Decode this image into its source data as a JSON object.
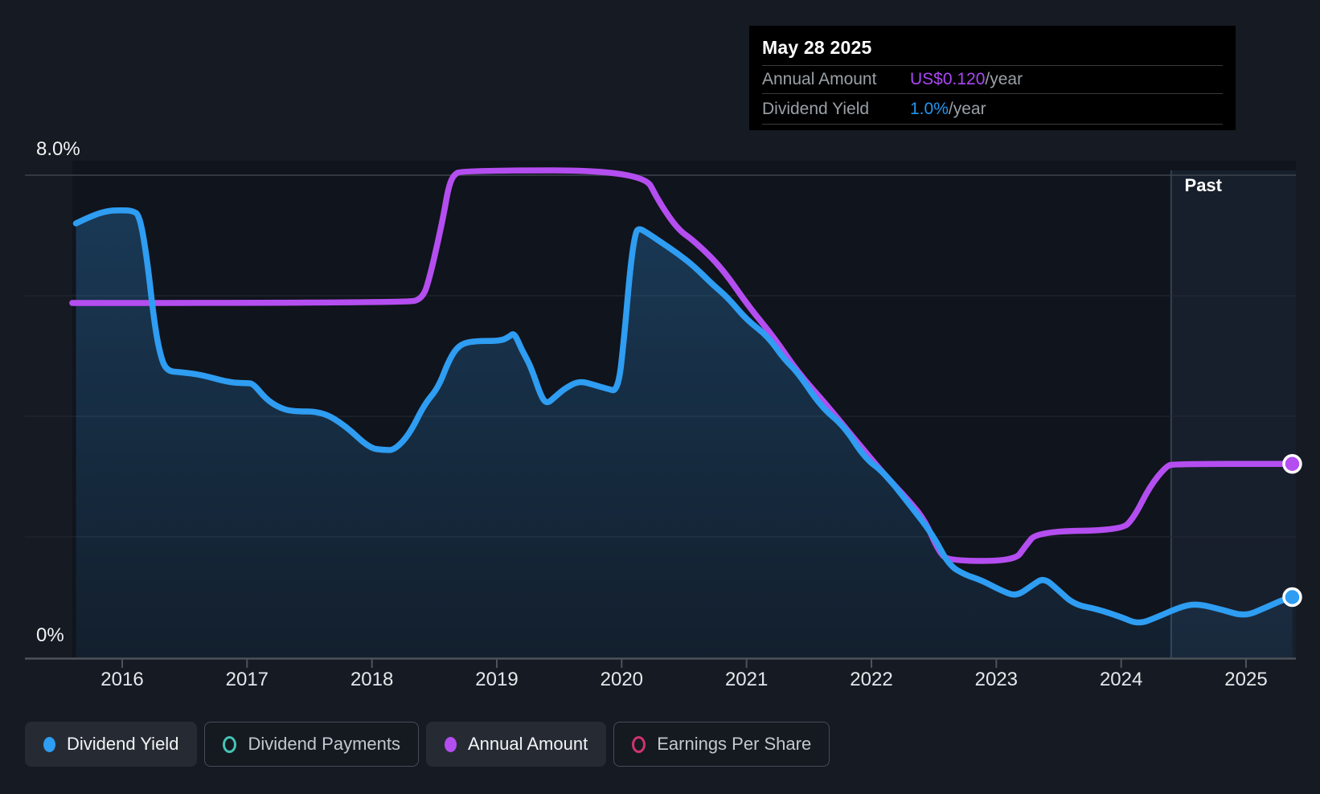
{
  "tooltip": {
    "date": "May 28 2025",
    "rows": [
      {
        "label": "Annual Amount",
        "value": "US$0.120",
        "suffix": "/year"
      },
      {
        "label": "Dividend Yield",
        "value": "1.0%",
        "suffix": "/year"
      }
    ]
  },
  "axis": {
    "y_top_label": "8.0%",
    "y_bottom_label": "0%",
    "years": [
      "2016",
      "2017",
      "2018",
      "2019",
      "2020",
      "2021",
      "2022",
      "2023",
      "2024",
      "2025"
    ],
    "past_label": "Past"
  },
  "legend": [
    {
      "label": "Dividend Yield",
      "color": "#2e9df2",
      "style": "filled",
      "active": true
    },
    {
      "label": "Dividend Payments",
      "color": "#45c4b5",
      "style": "ring",
      "active": false
    },
    {
      "label": "Annual Amount",
      "color": "#b44ef0",
      "style": "filled",
      "active": true
    },
    {
      "label": "Earnings Per Share",
      "color": "#d1336f",
      "style": "ring",
      "active": false
    }
  ],
  "colors": {
    "page_bg": "#161a22",
    "plot_bg": "#10141c",
    "grid_top": "#3c434c",
    "grid_mid": "#242a33",
    "axis_line": "#4d535b",
    "past_fill": "rgba(90,140,190,0.10)",
    "past_divider": "rgba(130,170,210,0.28)",
    "yield_line": "#2e9df2",
    "amount_line": "#b44ef0",
    "tooltip_purple": "#ab47f5",
    "tooltip_blue": "#2196f3"
  },
  "chart_data": {
    "type": "line",
    "title": "Dividend yield and annual amount history",
    "x_range": [
      2015.6,
      2025.45
    ],
    "ylim": [
      0,
      8
    ],
    "y_unit": "%",
    "grid_values": [
      0,
      2,
      4,
      6,
      8
    ],
    "grid": true,
    "legend_position": "bottom",
    "past_divider_x": 2024.4,
    "series": [
      {
        "name": "Dividend Yield",
        "color": "#2e9df2",
        "fill": true,
        "end_value_label": "1.0%/year",
        "points": [
          [
            2015.63,
            7.2
          ],
          [
            2015.75,
            7.32
          ],
          [
            2015.88,
            7.41
          ],
          [
            2016.0,
            7.42
          ],
          [
            2016.08,
            7.41
          ],
          [
            2016.14,
            7.34
          ],
          [
            2016.2,
            6.6
          ],
          [
            2016.26,
            5.5
          ],
          [
            2016.31,
            4.97
          ],
          [
            2016.36,
            4.75
          ],
          [
            2016.47,
            4.73
          ],
          [
            2016.63,
            4.69
          ],
          [
            2016.86,
            4.56
          ],
          [
            2017.0,
            4.55
          ],
          [
            2017.05,
            4.54
          ],
          [
            2017.15,
            4.29
          ],
          [
            2017.25,
            4.15
          ],
          [
            2017.36,
            4.08
          ],
          [
            2017.6,
            4.08
          ],
          [
            2017.79,
            3.84
          ],
          [
            2017.98,
            3.47
          ],
          [
            2018.1,
            3.44
          ],
          [
            2018.18,
            3.44
          ],
          [
            2018.3,
            3.7
          ],
          [
            2018.42,
            4.2
          ],
          [
            2018.53,
            4.47
          ],
          [
            2018.62,
            4.95
          ],
          [
            2018.7,
            5.19
          ],
          [
            2018.82,
            5.25
          ],
          [
            2019.03,
            5.25
          ],
          [
            2019.1,
            5.32
          ],
          [
            2019.14,
            5.39
          ],
          [
            2019.2,
            5.1
          ],
          [
            2019.27,
            4.84
          ],
          [
            2019.35,
            4.35
          ],
          [
            2019.4,
            4.2
          ],
          [
            2019.47,
            4.33
          ],
          [
            2019.55,
            4.47
          ],
          [
            2019.66,
            4.59
          ],
          [
            2019.78,
            4.52
          ],
          [
            2019.88,
            4.46
          ],
          [
            2019.97,
            4.41
          ],
          [
            2020.02,
            5.3
          ],
          [
            2020.07,
            6.5
          ],
          [
            2020.11,
            7.05
          ],
          [
            2020.14,
            7.12
          ],
          [
            2020.2,
            7.05
          ],
          [
            2020.3,
            6.91
          ],
          [
            2020.45,
            6.7
          ],
          [
            2020.58,
            6.49
          ],
          [
            2020.72,
            6.2
          ],
          [
            2020.85,
            5.97
          ],
          [
            2021.0,
            5.6
          ],
          [
            2021.17,
            5.33
          ],
          [
            2021.3,
            4.95
          ],
          [
            2021.41,
            4.73
          ],
          [
            2021.6,
            4.15
          ],
          [
            2021.78,
            3.84
          ],
          [
            2021.95,
            3.3
          ],
          [
            2022.1,
            3.07
          ],
          [
            2022.3,
            2.55
          ],
          [
            2022.49,
            2.04
          ],
          [
            2022.62,
            1.53
          ],
          [
            2022.75,
            1.37
          ],
          [
            2022.88,
            1.28
          ],
          [
            2023.04,
            1.11
          ],
          [
            2023.16,
            1.01
          ],
          [
            2023.29,
            1.2
          ],
          [
            2023.38,
            1.32
          ],
          [
            2023.49,
            1.13
          ],
          [
            2023.62,
            0.88
          ],
          [
            2023.81,
            0.8
          ],
          [
            2024.0,
            0.67
          ],
          [
            2024.14,
            0.55
          ],
          [
            2024.29,
            0.67
          ],
          [
            2024.49,
            0.85
          ],
          [
            2024.61,
            0.89
          ],
          [
            2024.81,
            0.79
          ],
          [
            2024.99,
            0.68
          ],
          [
            2025.16,
            0.83
          ],
          [
            2025.29,
            0.95
          ],
          [
            2025.37,
            1.0
          ]
        ]
      },
      {
        "name": "Annual Amount",
        "color": "#b44ef0",
        "fill": false,
        "end_value_label": "US$0.120/year",
        "unit_note": "plotted on a separate US$ scale; y values are %-axis equivalent positions",
        "points": [
          [
            2015.6,
            5.88
          ],
          [
            2018.27,
            5.88
          ],
          [
            2018.41,
            5.95
          ],
          [
            2018.47,
            6.37
          ],
          [
            2018.53,
            6.91
          ],
          [
            2018.58,
            7.41
          ],
          [
            2018.61,
            7.77
          ],
          [
            2018.65,
            8.0
          ],
          [
            2018.72,
            8.08
          ],
          [
            2020.17,
            8.08
          ],
          [
            2020.3,
            7.55
          ],
          [
            2020.45,
            7.1
          ],
          [
            2020.58,
            6.91
          ],
          [
            2020.8,
            6.47
          ],
          [
            2021.01,
            5.84
          ],
          [
            2021.22,
            5.31
          ],
          [
            2021.41,
            4.73
          ],
          [
            2021.65,
            4.17
          ],
          [
            2021.87,
            3.61
          ],
          [
            2022.1,
            3.04
          ],
          [
            2022.3,
            2.6
          ],
          [
            2022.43,
            2.27
          ],
          [
            2022.54,
            1.75
          ],
          [
            2022.62,
            1.6
          ],
          [
            2023.15,
            1.6
          ],
          [
            2023.23,
            1.84
          ],
          [
            2023.33,
            2.09
          ],
          [
            2024.0,
            2.11
          ],
          [
            2024.1,
            2.31
          ],
          [
            2024.23,
            2.84
          ],
          [
            2024.36,
            3.17
          ],
          [
            2024.42,
            3.21
          ],
          [
            2025.37,
            3.21
          ]
        ]
      }
    ]
  }
}
